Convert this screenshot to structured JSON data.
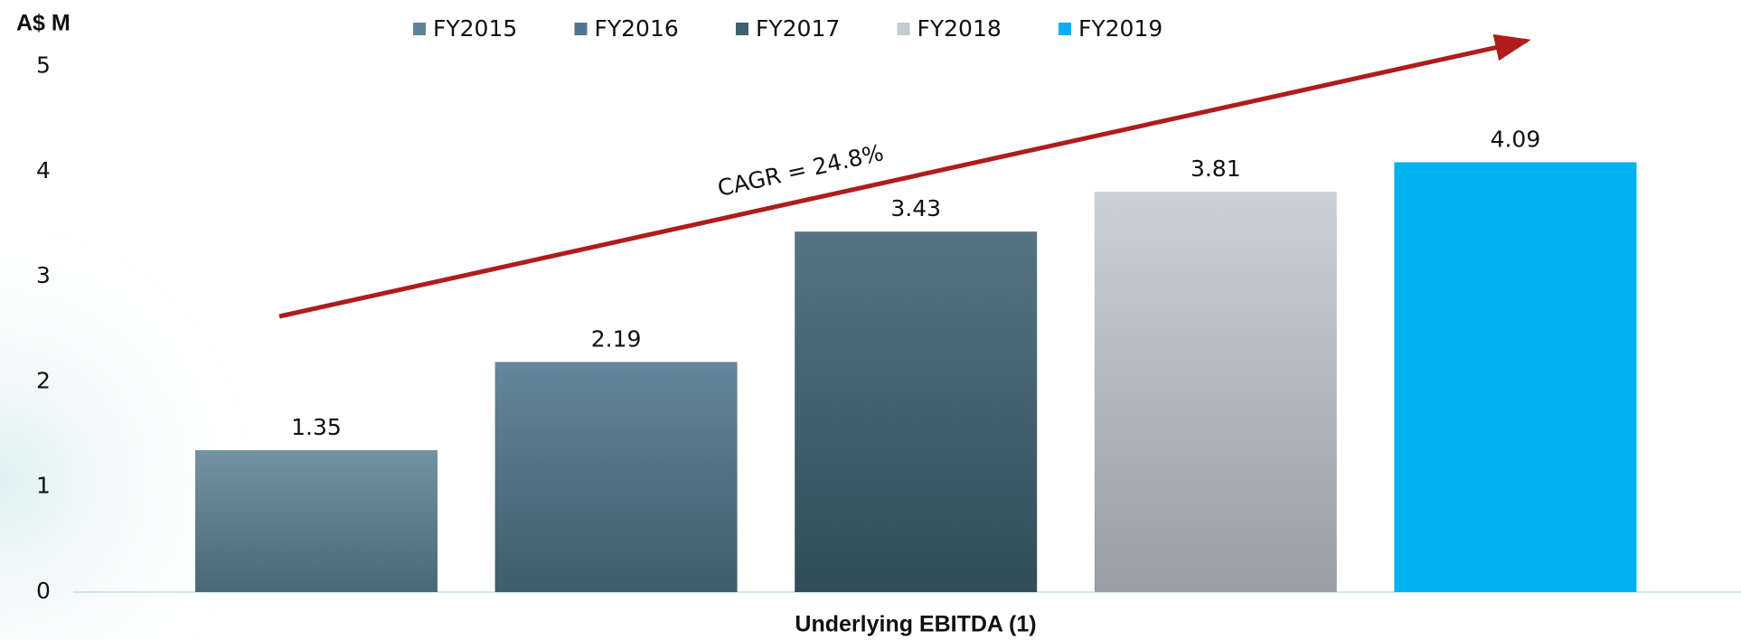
{
  "chart_data": {
    "type": "bar",
    "y_axis_label": "A$ M",
    "x_axis_label": "Underlying EBITDA (1)",
    "categories": [
      "Underlying EBITDA (1)"
    ],
    "series": [
      {
        "name": "FY2015",
        "color": "#5f8496",
        "values": [
          1.35
        ]
      },
      {
        "name": "FY2016",
        "color": "#4f778b",
        "values": [
          2.19
        ]
      },
      {
        "name": "FY2017",
        "color": "#3f6172",
        "values": [
          3.43
        ]
      },
      {
        "name": "FY2018",
        "color": "#c3cbd1",
        "values": [
          3.81
        ]
      },
      {
        "name": "FY2019",
        "color": "#00b0f0",
        "values": [
          4.09
        ]
      }
    ],
    "annotation": "CAGR = 24.8%",
    "ylim": [
      0,
      5
    ],
    "yticks": [
      0,
      1,
      2,
      3,
      4,
      5
    ],
    "legend": "top",
    "grid": false
  }
}
